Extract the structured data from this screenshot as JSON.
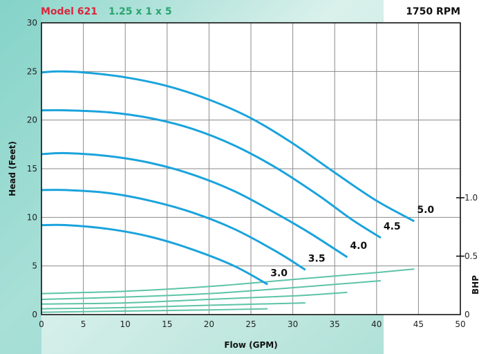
{
  "header": {
    "model": "Model 621",
    "size": "1.25 x 1 x 5",
    "rpm": "1750 RPM"
  },
  "colors": {
    "head_curve": "#1aa3dc",
    "bhp_curve": "#5cc3a6",
    "model_text": "#d8263c",
    "size_text": "#2aa36e"
  },
  "chart_data": {
    "type": "line",
    "xlabel": "Flow (GPM)",
    "ylabel": "Head (Feet)",
    "y2label": "BHP",
    "xlim": [
      0,
      50
    ],
    "ylim": [
      0,
      30
    ],
    "y2lim": [
      0,
      1.0
    ],
    "xticks": [
      0,
      5,
      10,
      15,
      20,
      25,
      30,
      35,
      40,
      45,
      50
    ],
    "yticks": [
      0,
      5,
      10,
      15,
      20,
      25,
      30
    ],
    "y2ticks": [
      {
        "value": 0,
        "label": "0"
      },
      {
        "value": 0.5,
        "label": "0.5"
      },
      {
        "value": 1.0,
        "label": "1.0"
      }
    ],
    "grid": true,
    "head_series": [
      {
        "name": "5.0",
        "x": [
          0,
          2,
          5,
          10,
          15,
          20,
          25,
          30,
          35,
          40,
          44.5
        ],
        "y": [
          24.9,
          25,
          24.9,
          24.4,
          23.5,
          22.1,
          20.2,
          17.6,
          14.6,
          11.7,
          9.6
        ]
      },
      {
        "name": "4.5",
        "x": [
          0,
          3,
          8,
          13,
          18,
          23,
          28,
          33,
          37,
          40.5
        ],
        "y": [
          21,
          21,
          20.8,
          20.2,
          19.1,
          17.4,
          15.1,
          12.3,
          9.8,
          7.9
        ]
      },
      {
        "name": "4.0",
        "x": [
          0,
          3,
          8,
          13,
          18,
          23,
          28,
          32,
          36.5
        ],
        "y": [
          16.5,
          16.6,
          16.3,
          15.6,
          14.4,
          12.7,
          10.4,
          8.4,
          5.9
        ]
      },
      {
        "name": "3.5",
        "x": [
          0,
          3,
          8,
          13,
          18,
          23,
          28,
          31.5
        ],
        "y": [
          12.8,
          12.8,
          12.5,
          11.7,
          10.5,
          8.8,
          6.5,
          4.6
        ]
      },
      {
        "name": "3.0",
        "x": [
          0,
          3,
          8,
          13,
          18,
          23,
          27
        ],
        "y": [
          9.2,
          9.2,
          8.8,
          8.0,
          6.7,
          5.0,
          3.1
        ]
      }
    ],
    "bhp_series": [
      {
        "name": "5.0",
        "x": [
          0,
          10,
          20,
          30,
          40,
          44.5
        ],
        "y": [
          0.18,
          0.2,
          0.24,
          0.3,
          0.36,
          0.39
        ]
      },
      {
        "name": "4.5",
        "x": [
          0,
          10,
          20,
          30,
          40.5
        ],
        "y": [
          0.13,
          0.15,
          0.18,
          0.23,
          0.29
        ]
      },
      {
        "name": "4.0",
        "x": [
          0,
          10,
          20,
          30,
          36.5
        ],
        "y": [
          0.09,
          0.1,
          0.13,
          0.16,
          0.19
        ]
      },
      {
        "name": "3.5",
        "x": [
          0,
          10,
          20,
          31.5
        ],
        "y": [
          0.05,
          0.06,
          0.08,
          0.1
        ]
      },
      {
        "name": "3.0",
        "x": [
          0,
          10,
          20,
          27
        ],
        "y": [
          0.02,
          0.03,
          0.04,
          0.05
        ]
      }
    ]
  }
}
